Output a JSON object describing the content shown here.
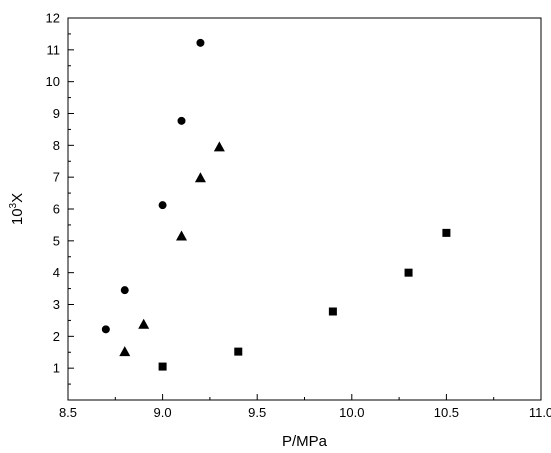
{
  "chart_data": {
    "type": "scatter",
    "xlabel": "P/MPa",
    "ylabel_base": "10",
    "ylabel_sup": "3",
    "ylabel_suffix": "X",
    "xlim": [
      8.5,
      11.0
    ],
    "ylim": [
      0,
      12
    ],
    "x_ticks": [
      "8.5",
      "9.0",
      "9.5",
      "10.0",
      "10.5",
      "11.0"
    ],
    "y_ticks": [
      "1",
      "2",
      "3",
      "4",
      "5",
      "6",
      "7",
      "8",
      "9",
      "10",
      "11",
      "12"
    ],
    "grid": false,
    "series": [
      {
        "marker": "circle",
        "color": "#000000",
        "points": [
          [
            8.7,
            2.22
          ],
          [
            8.8,
            3.45
          ],
          [
            9.0,
            6.12
          ],
          [
            9.1,
            8.77
          ],
          [
            9.2,
            11.22
          ]
        ]
      },
      {
        "marker": "triangle",
        "color": "#000000",
        "points": [
          [
            8.8,
            1.52
          ],
          [
            8.9,
            2.38
          ],
          [
            9.1,
            5.15
          ],
          [
            9.2,
            6.98
          ],
          [
            9.3,
            7.95
          ]
        ]
      },
      {
        "marker": "square",
        "color": "#000000",
        "points": [
          [
            9.0,
            1.05
          ],
          [
            9.4,
            1.52
          ],
          [
            9.9,
            2.78
          ],
          [
            10.3,
            4.0
          ],
          [
            10.5,
            5.25
          ]
        ]
      }
    ]
  }
}
